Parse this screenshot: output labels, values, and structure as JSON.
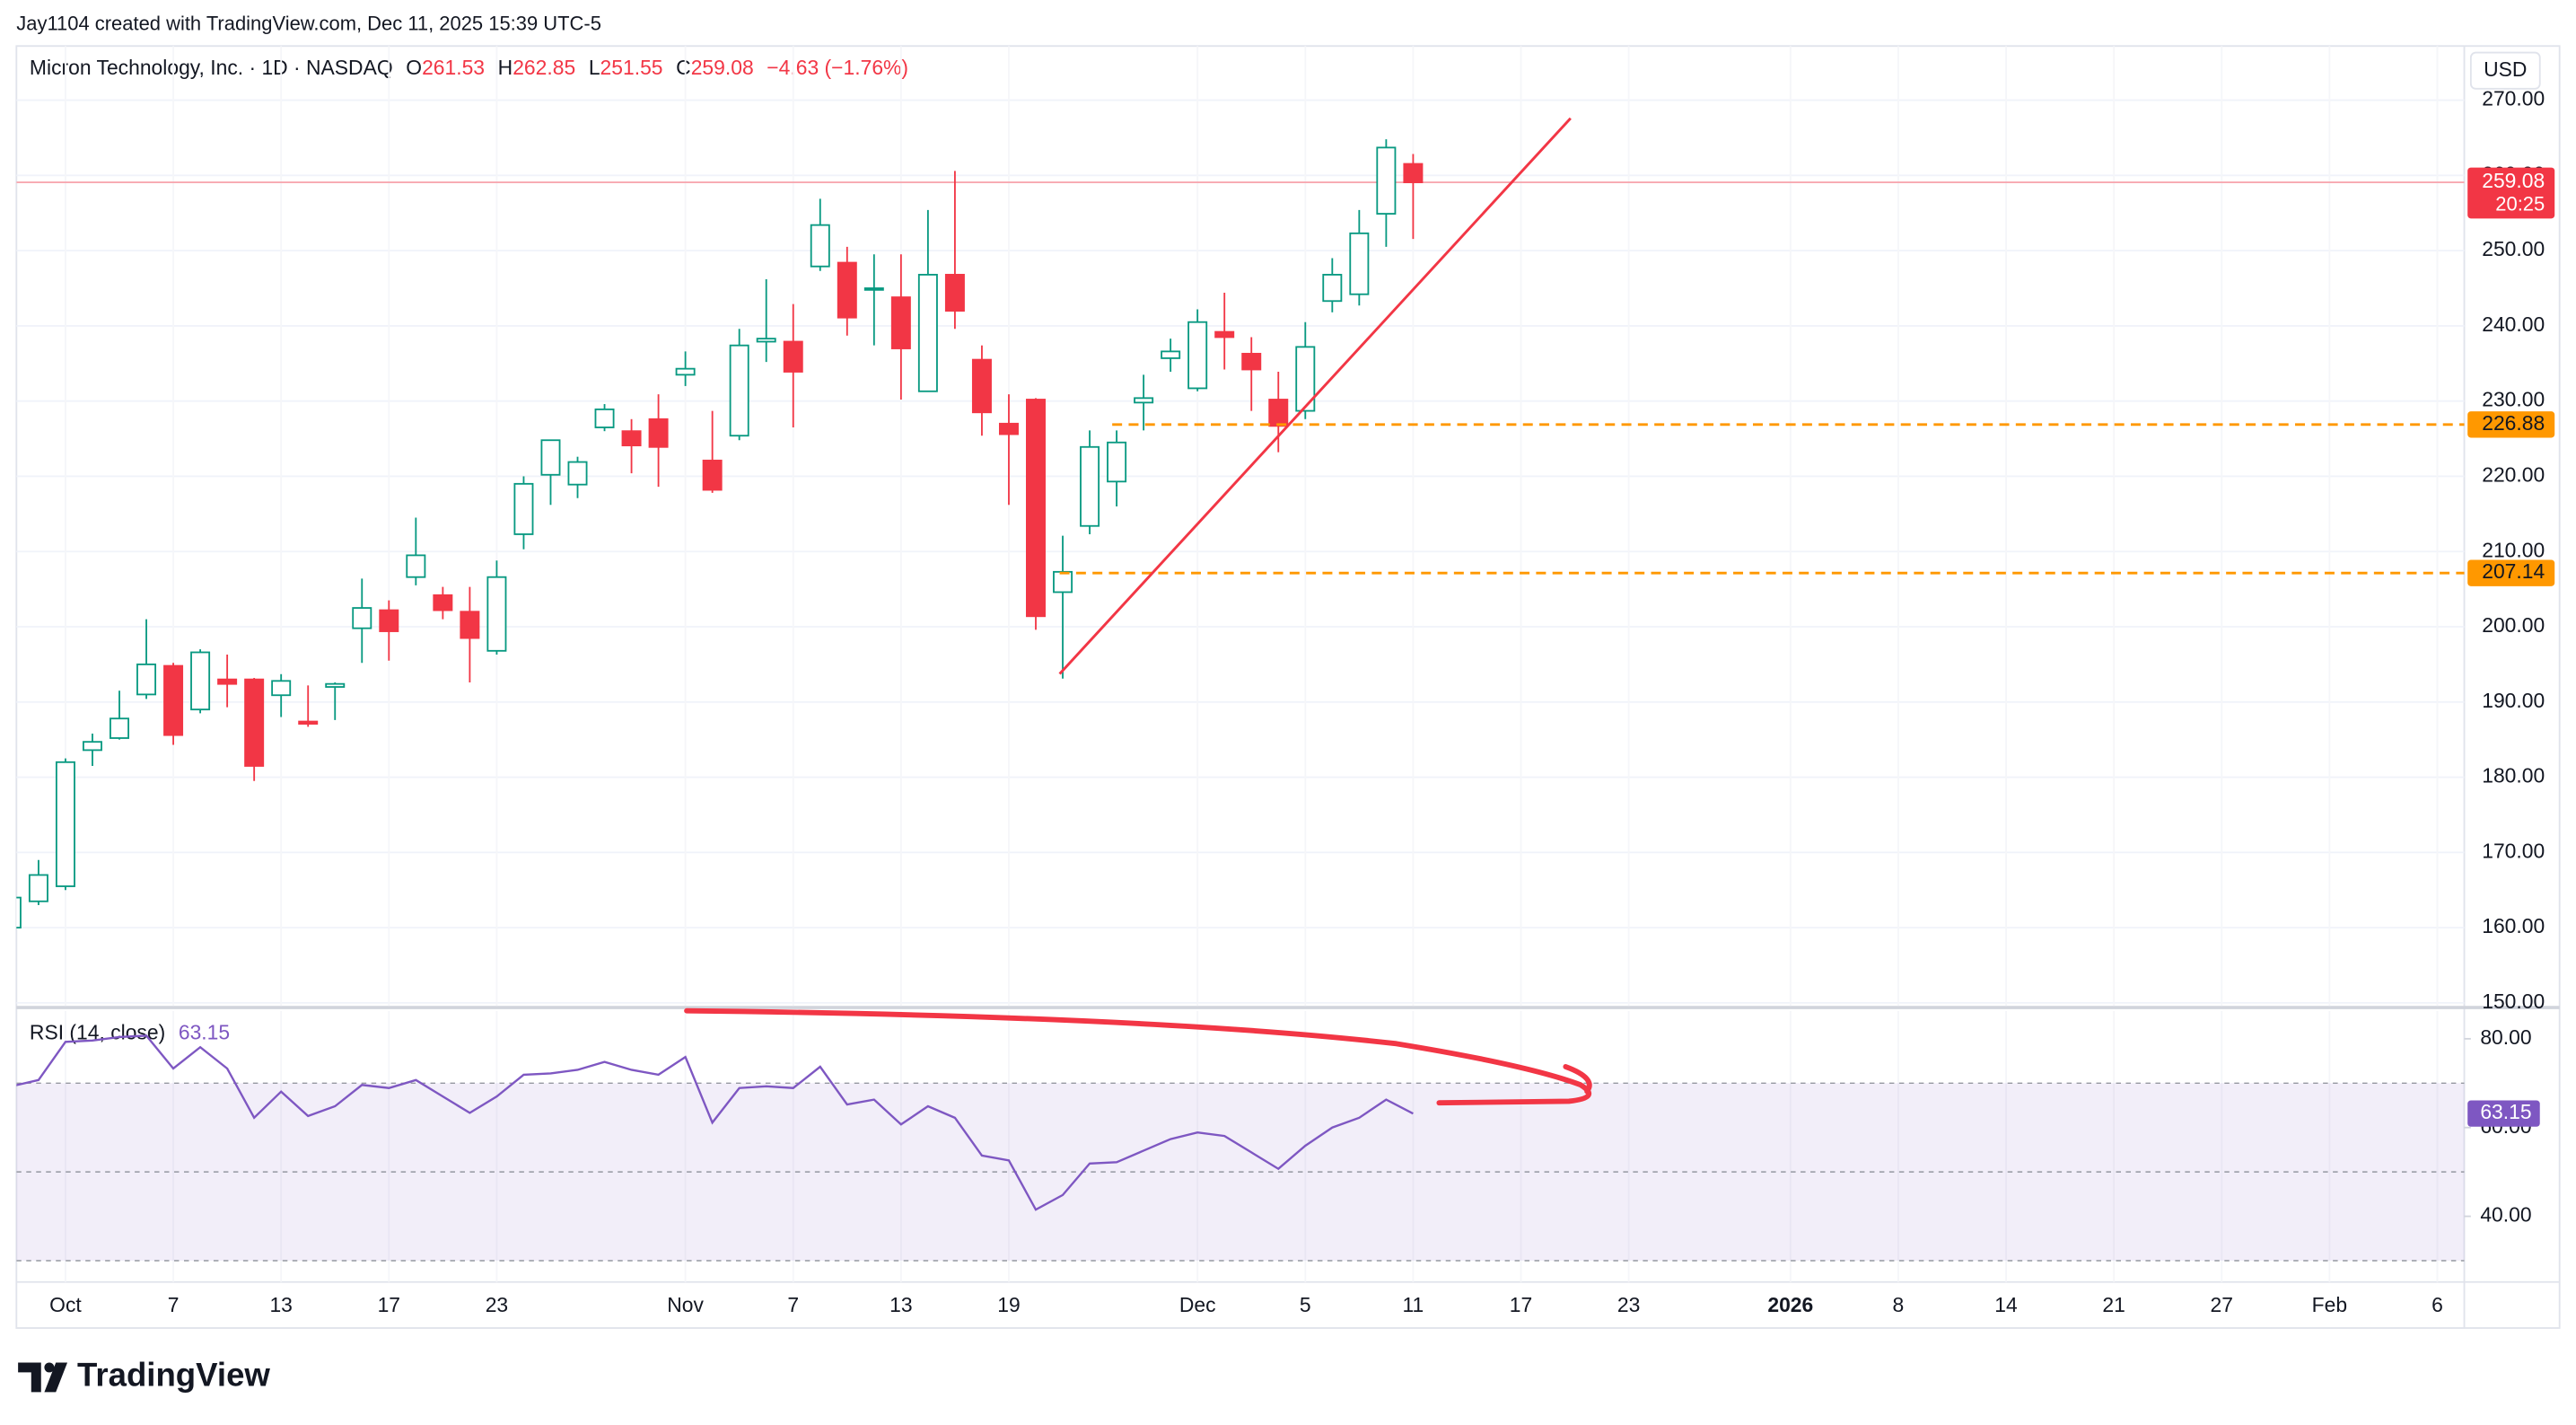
{
  "header": {
    "credit": "Jay1104 created with TradingView.com, Dec 11, 2025 15:39 UTC-5",
    "brand": "TradingView"
  },
  "chart_data": {
    "type": "candlestick",
    "title": "Micron Technology, Inc. · 1D · NASDAQ",
    "currency": "USD",
    "ohlc_labels": [
      "O",
      "H",
      "L",
      "C"
    ],
    "change": "−4.63 (−1.76%)",
    "countdown": "20:25",
    "up_color": "#089981",
    "down_color": "#f23645",
    "x": [
      0,
      1,
      2,
      3,
      4,
      5,
      6,
      7,
      8,
      9,
      10,
      11,
      12,
      13,
      14,
      15,
      16,
      17,
      18,
      19,
      20,
      21,
      22,
      23,
      24,
      25,
      26,
      27,
      28,
      29,
      30,
      31,
      32,
      33,
      34,
      35,
      36,
      37,
      38,
      39,
      40,
      41,
      42,
      43,
      44,
      45,
      46,
      47,
      48,
      49,
      50,
      51,
      52
    ],
    "open": [
      160,
      163.5,
      165.5,
      183.6,
      185.2,
      191,
      194.8,
      189,
      193,
      193,
      190.9,
      187.4,
      192,
      199.8,
      202.2,
      206.6,
      204.2,
      202,
      196.8,
      212.3,
      220.2,
      218.9,
      226.5,
      226,
      227.6,
      233.5,
      222.1,
      225.4,
      237.9,
      237.9,
      247.9,
      248.4,
      244.8,
      243.8,
      231.3,
      246.8,
      235.5,
      227,
      230.2,
      204.6,
      213.4,
      219.3,
      229.8,
      235.7,
      231.7,
      239.2,
      236.3,
      230.2,
      228.7,
      243.3,
      244.2,
      254.9,
      261.53
    ],
    "high": [
      165,
      169,
      182.5,
      185.8,
      191.5,
      201,
      195.2,
      197,
      196.3,
      193.2,
      193.7,
      192.2,
      192.6,
      206.4,
      203.5,
      214.5,
      205.3,
      205.3,
      208.8,
      220,
      224.8,
      222.6,
      229.6,
      227.6,
      230.9,
      236.6,
      228.7,
      239.6,
      246.2,
      242.9,
      256.9,
      250.5,
      249.5,
      249.5,
      255.4,
      260.6,
      237.4,
      230.9,
      230.4,
      212.1,
      226.1,
      226.1,
      233.5,
      238.3,
      242.2,
      244.4,
      238.5,
      233.9,
      240.5,
      249,
      255.4,
      264.8,
      262.85
    ],
    "low": [
      159,
      163,
      165,
      181.5,
      185,
      190.4,
      184.3,
      188.5,
      189.3,
      179.5,
      188,
      186.7,
      187.6,
      195.2,
      195.5,
      205.5,
      201,
      192.6,
      196.3,
      210.3,
      216.2,
      217.1,
      226,
      220.4,
      218.6,
      232,
      217.8,
      224.8,
      235.2,
      226.5,
      247.3,
      238.7,
      237.4,
      230.2,
      231.3,
      239.6,
      225.4,
      216.2,
      199.6,
      193.1,
      212.3,
      216,
      226.1,
      233.9,
      231.3,
      234.2,
      228.7,
      223.2,
      227.6,
      241.8,
      242.7,
      250.5,
      251.55
    ],
    "close": [
      164,
      167,
      182,
      184.7,
      187.8,
      195,
      185.6,
      196.6,
      192.4,
      181.5,
      192.8,
      187.1,
      192.4,
      202.5,
      199.4,
      209.5,
      202.2,
      198.5,
      206.6,
      219,
      224.8,
      221.9,
      228.9,
      224.1,
      223.9,
      234.3,
      218.2,
      237.4,
      238.3,
      233.9,
      253.4,
      241.1,
      245,
      237,
      246.8,
      242,
      228.5,
      225.6,
      201.4,
      207.3,
      223.9,
      224.5,
      230.4,
      236.6,
      240.5,
      238.5,
      234.2,
      226.7,
      237.2,
      246.8,
      252.3,
      263.7,
      259.08
    ],
    "xlim": [
      0.18,
      91
    ],
    "ylim": [
      149.6,
      277.2
    ],
    "yticks": [
      {
        "value": 150,
        "label": "150.00"
      },
      {
        "value": 160,
        "label": "160.00"
      },
      {
        "value": 170,
        "label": "170.00"
      },
      {
        "value": 180,
        "label": "180.00"
      },
      {
        "value": 190,
        "label": "190.00"
      },
      {
        "value": 200,
        "label": "200.00"
      },
      {
        "value": 210,
        "label": "210.00"
      },
      {
        "value": 220,
        "label": "220.00"
      },
      {
        "value": 230,
        "label": "230.00"
      },
      {
        "value": 240,
        "label": "240.00"
      },
      {
        "value": 250,
        "label": "250.00"
      },
      {
        "value": 260,
        "label": "260.00"
      },
      {
        "value": 270,
        "label": "270.00"
      }
    ],
    "xticks": [
      {
        "value": 2,
        "label": "Oct"
      },
      {
        "value": 6,
        "label": "7"
      },
      {
        "value": 10,
        "label": "13"
      },
      {
        "value": 14,
        "label": "17"
      },
      {
        "value": 18,
        "label": "23"
      },
      {
        "value": 25,
        "label": "Nov"
      },
      {
        "value": 29,
        "label": "7"
      },
      {
        "value": 33,
        "label": "13"
      },
      {
        "value": 37,
        "label": "19"
      },
      {
        "value": 44,
        "label": "Dec"
      },
      {
        "value": 48,
        "label": "5"
      },
      {
        "value": 52,
        "label": "11"
      },
      {
        "value": 56,
        "label": "17"
      },
      {
        "value": 60,
        "label": "23"
      },
      {
        "value": 66,
        "label": "2026"
      },
      {
        "value": 70,
        "label": "8"
      },
      {
        "value": 74,
        "label": "14"
      },
      {
        "value": 78,
        "label": "21"
      },
      {
        "value": 82,
        "label": "27"
      },
      {
        "value": 86,
        "label": "Feb"
      },
      {
        "value": 90,
        "label": "6"
      }
    ],
    "grid": true,
    "hlines": [
      {
        "value": 226.88,
        "color": "#ff9800"
      },
      {
        "value": 207.14,
        "color": "#ff9800"
      }
    ],
    "indicator": {
      "type": "line",
      "label": "RSI (14, close)",
      "color": "#7e57c2",
      "values": [
        69.3,
        70.7,
        79.3,
        79.6,
        80.4,
        80.7,
        73.3,
        78.1,
        73.3,
        62.2,
        68.1,
        62.6,
        64.8,
        69.6,
        68.9,
        70.7,
        67,
        63.3,
        67,
        71.9,
        72.2,
        73,
        74.8,
        73,
        71.9,
        75.9,
        61.1,
        68.9,
        69.3,
        68.9,
        73.7,
        65.2,
        66.3,
        60.7,
        64.8,
        62.2,
        53.7,
        52.6,
        41.5,
        44.8,
        51.9,
        52.2,
        54.8,
        57.4,
        58.9,
        58.1,
        54.4,
        50.7,
        55.9,
        60,
        62.2,
        66.3,
        63.15
      ],
      "ylim": [
        25.2,
        86.3
      ],
      "yticks": [
        {
          "value": 40,
          "label": "40.00"
        },
        {
          "value": 60,
          "label": "60.00"
        },
        {
          "value": 80,
          "label": "80.00"
        }
      ],
      "levels": [
        70,
        50,
        30
      ]
    }
  }
}
